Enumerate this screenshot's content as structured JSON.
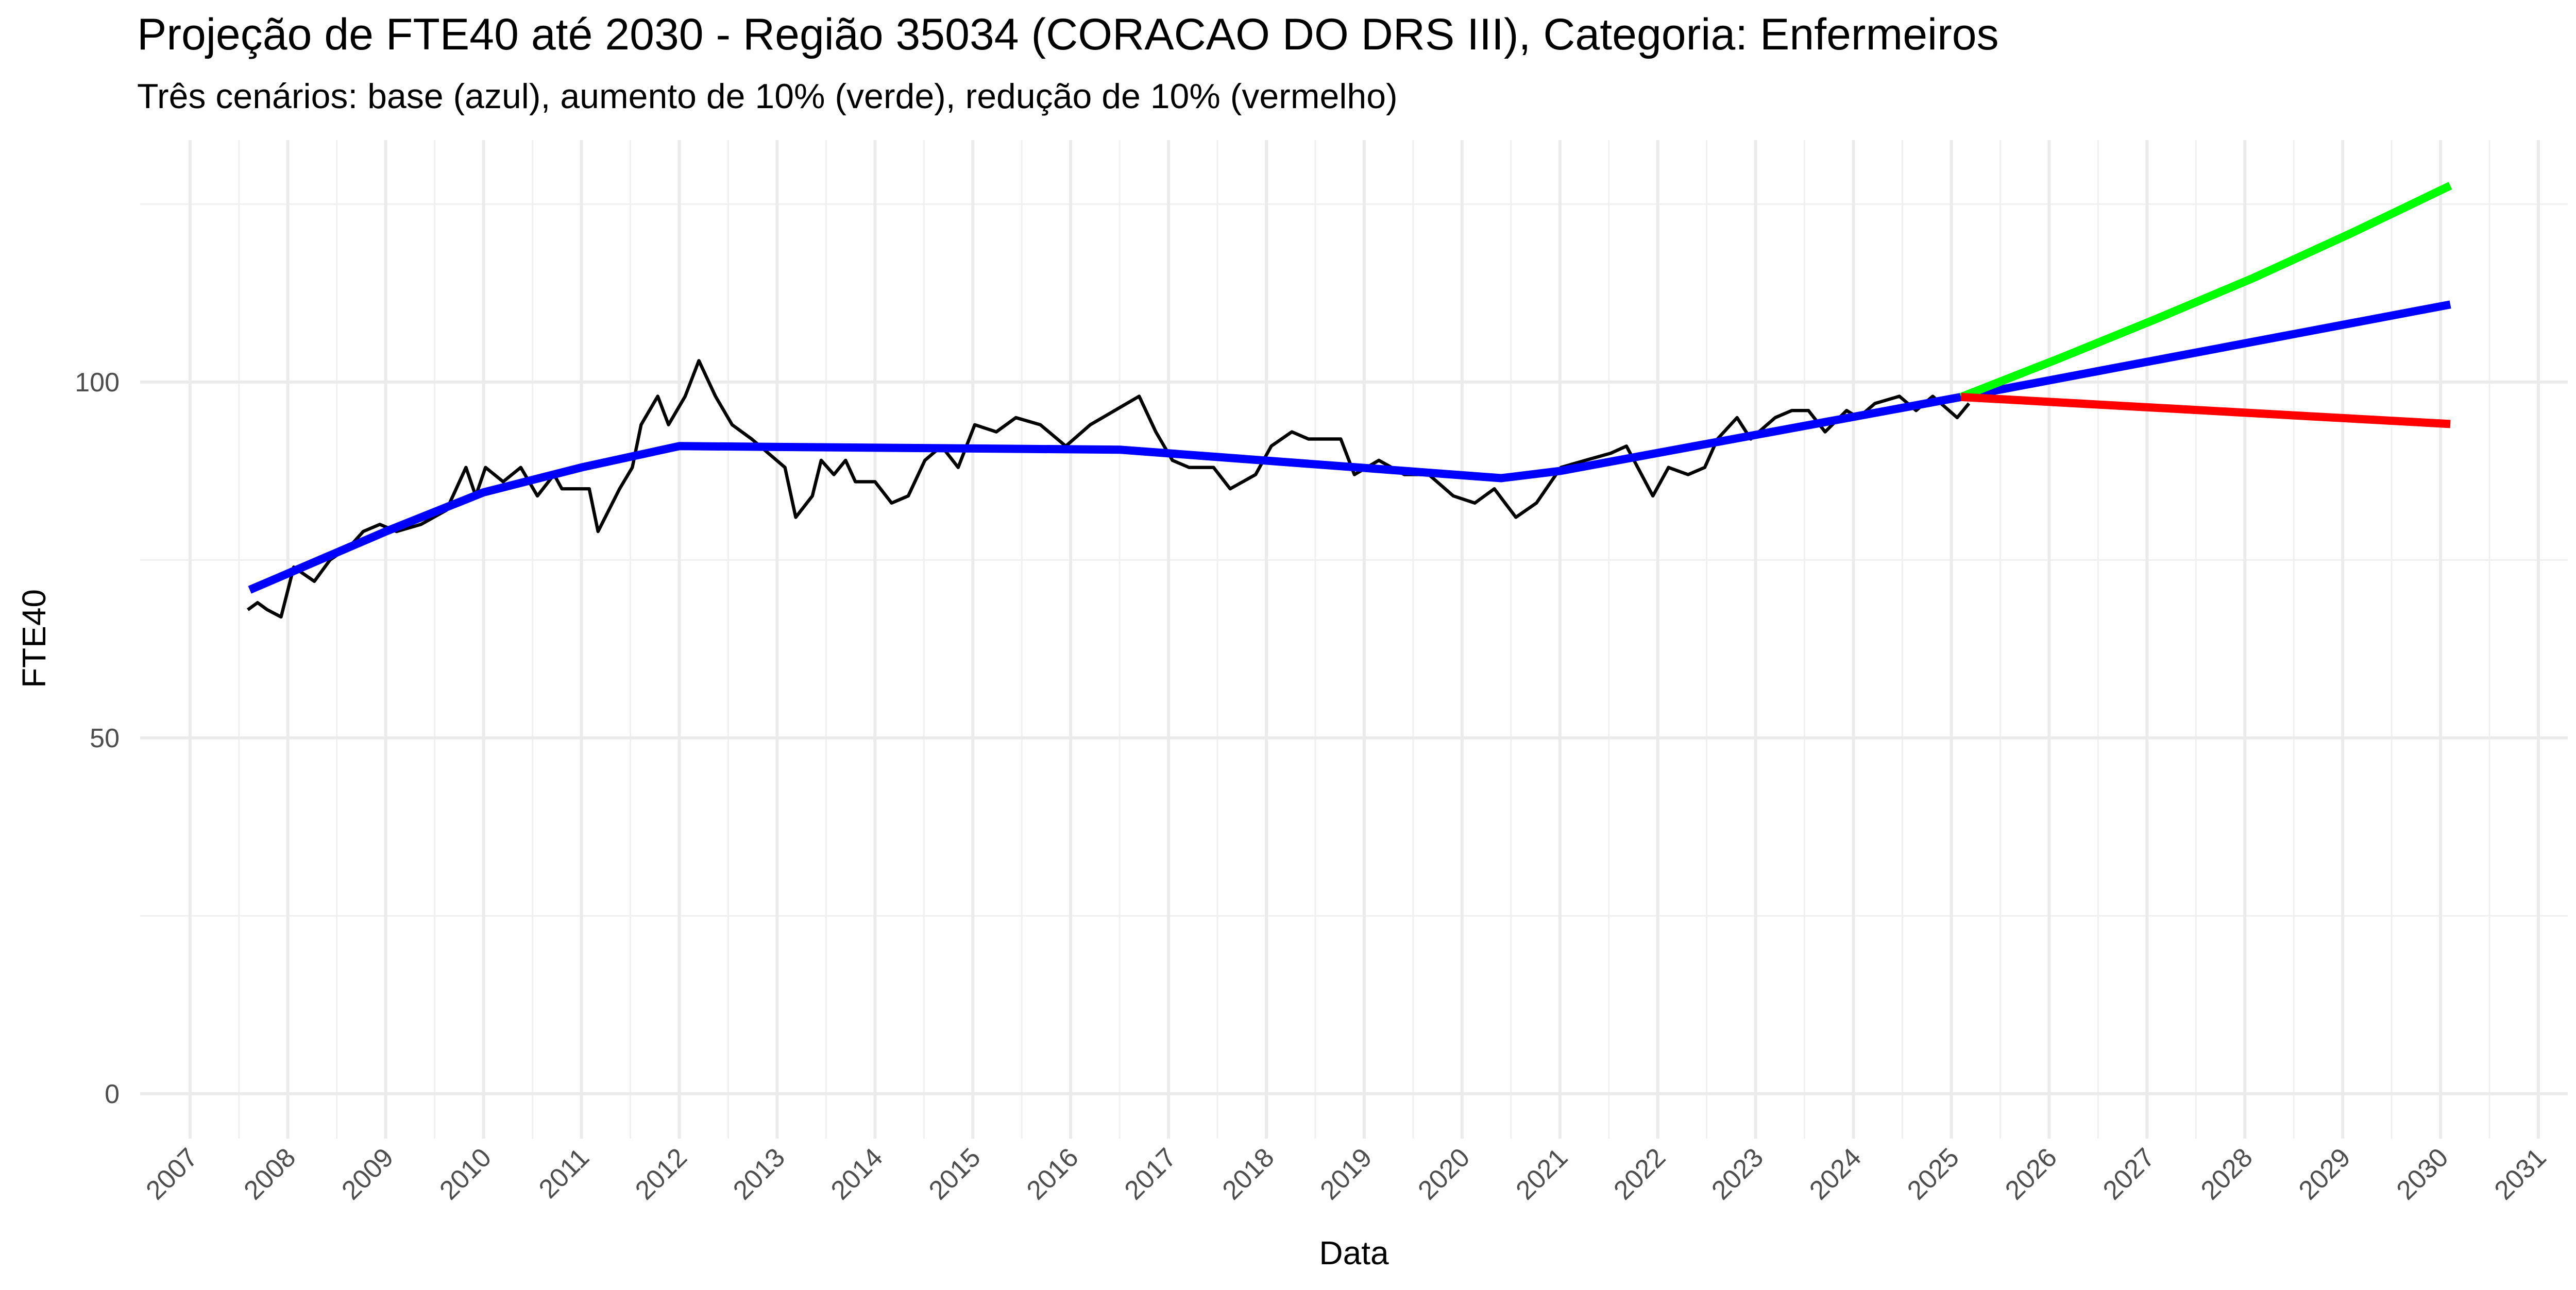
{
  "chart_data": {
    "type": "line",
    "title": "Projeção de FTE40 até 2030 - Região 35034 (CORACAO DO DRS III), Categoria: Enfermeiros",
    "subtitle": "Três cenários: base (azul), aumento de 10% (verde), redução de 10% (vermelho)",
    "x_label": "Data",
    "y_label": "FTE40",
    "xlim": [
      2006.49,
      2031.3
    ],
    "xticks": [
      2007,
      2008,
      2009,
      2010,
      2011,
      2012,
      2013,
      2014,
      2015,
      2016,
      2017,
      2018,
      2019,
      2020,
      2021,
      2022,
      2023,
      2024,
      2025,
      2026,
      2027,
      2028,
      2029,
      2030,
      2031
    ],
    "ylim": [
      -6.3,
      134
    ],
    "yticks": [
      0,
      50,
      100
    ],
    "yminorticks": [
      25,
      75,
      125
    ],
    "grid": true,
    "series": [
      {
        "color": "#000000",
        "width": 2,
        "x": [
          2007.59,
          2007.69,
          2007.79,
          2007.93,
          2008.06,
          2008.27,
          2008.43,
          2008.64,
          2008.77,
          2008.94,
          2009.11,
          2009.36,
          2009.62,
          2009.82,
          2009.92,
          2010.02,
          2010.2,
          2010.38,
          2010.55,
          2010.72,
          2010.8,
          2011.08,
          2011.17,
          2011.39,
          2011.52,
          2011.61,
          2011.78,
          2011.89,
          2012.06,
          2012.2,
          2012.37,
          2012.54,
          2012.74,
          2012.91,
          2013.08,
          2013.19,
          2013.36,
          2013.45,
          2013.58,
          2013.7,
          2013.8,
          2014.0,
          2014.17,
          2014.34,
          2014.51,
          2014.68,
          2014.85,
          2015.02,
          2015.24,
          2015.44,
          2015.69,
          2015.95,
          2016.2,
          2016.45,
          2016.7,
          2016.87,
          2017.04,
          2017.21,
          2017.46,
          2017.63,
          2017.89,
          2018.05,
          2018.26,
          2018.43,
          2018.56,
          2018.76,
          2018.9,
          2019.15,
          2019.41,
          2019.66,
          2019.91,
          2020.13,
          2020.33,
          2020.55,
          2020.76,
          2021.01,
          2021.26,
          2021.52,
          2021.68,
          2021.95,
          2022.11,
          2022.31,
          2022.48,
          2022.61,
          2022.81,
          2022.95,
          2023.2,
          2023.37,
          2023.54,
          2023.71,
          2023.93,
          2024.05,
          2024.22,
          2024.47,
          2024.64,
          2024.81,
          2025.06,
          2025.18
        ],
        "values": [
          68,
          69,
          68,
          67,
          74,
          72,
          75,
          77,
          79,
          80,
          79,
          80,
          82,
          88,
          84,
          88,
          86,
          88,
          84,
          87,
          85,
          85,
          79,
          85,
          88,
          94,
          98,
          94,
          98,
          103,
          98,
          94,
          92,
          90,
          88,
          81,
          84,
          89,
          87,
          89,
          86,
          86,
          83,
          84,
          89,
          91,
          88,
          94,
          93,
          95,
          94,
          91,
          94,
          96,
          98,
          93,
          89,
          88,
          88,
          85,
          87,
          91,
          93,
          92,
          92,
          92,
          87,
          89,
          87,
          87,
          84,
          83,
          85,
          81,
          83,
          88,
          89,
          90,
          91,
          84,
          88,
          87,
          88,
          92,
          95,
          92,
          95,
          96,
          96,
          93,
          96,
          95,
          97,
          98,
          96,
          98,
          95,
          97
        ]
      },
      {
        "color": "#0000ff",
        "width": 5,
        "x": [
          2007.61,
          2009.0,
          2010.0,
          2011.0,
          2012.0,
          2016.5,
          2020.4,
          2021.0,
          2025.1,
          2030.1
        ],
        "values": [
          70.8,
          79,
          84.5,
          88,
          91,
          90.5,
          86.5,
          87.5,
          97.9,
          110.9
        ]
      },
      {
        "color": "#00ff00",
        "width": 5,
        "x": [
          2025.1,
          2026.1,
          2027.1,
          2028.1,
          2029.1,
          2030.1
        ],
        "values": [
          97.9,
          103.3,
          108.9,
          114.7,
          121,
          127.6
        ]
      },
      {
        "color": "#ff0000",
        "width": 5,
        "x": [
          2025.1,
          2030.1
        ],
        "values": [
          97.9,
          94.1
        ]
      }
    ]
  }
}
